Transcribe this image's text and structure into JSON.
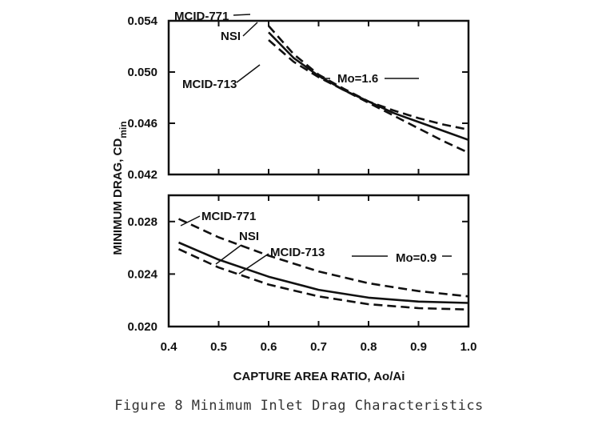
{
  "caption": "Figure 8  Minimum Inlet Drag Characteristics",
  "chart_data": [
    {
      "type": "line",
      "panel": "top",
      "xlim": [
        0.4,
        1.0
      ],
      "ylim": [
        0.042,
        0.054
      ],
      "yticks": [
        0.042,
        0.046,
        0.05,
        0.054
      ],
      "ytick_labels": [
        "0.042",
        "0.046",
        "0.050",
        "0.054"
      ],
      "annotation": "Mo=1.6",
      "series": [
        {
          "name": "MCID-771",
          "style": "dashed",
          "x": [
            0.6,
            0.65,
            0.7,
            0.75,
            0.8,
            0.85,
            0.9,
            0.95,
            1.0
          ],
          "y": [
            0.0536,
            0.0514,
            0.0498,
            0.0487,
            0.0477,
            0.047,
            0.0464,
            0.0459,
            0.0455
          ]
        },
        {
          "name": "NSI",
          "style": "solid",
          "x": [
            0.6,
            0.65,
            0.7,
            0.75,
            0.8,
            0.85,
            0.9,
            0.95,
            1.0
          ],
          "y": [
            0.0531,
            0.0511,
            0.0497,
            0.0486,
            0.0477,
            0.0468,
            0.0461,
            0.0454,
            0.0447
          ]
        },
        {
          "name": "MCID-713",
          "style": "dashed",
          "x": [
            0.6,
            0.65,
            0.7,
            0.75,
            0.8,
            0.85,
            0.9,
            0.95,
            1.0
          ],
          "y": [
            0.0525,
            0.0508,
            0.0496,
            0.0486,
            0.0476,
            0.0466,
            0.0456,
            0.0446,
            0.0437
          ]
        }
      ]
    },
    {
      "type": "line",
      "panel": "bottom",
      "xlim": [
        0.4,
        1.0
      ],
      "ylim": [
        0.02,
        0.03
      ],
      "yticks": [
        0.02,
        0.024,
        0.028
      ],
      "ytick_labels": [
        "0.020",
        "0.024",
        "0.028"
      ],
      "xticks": [
        0.4,
        0.5,
        0.6,
        0.7,
        0.8,
        0.9,
        1.0
      ],
      "xtick_labels": [
        "0.4",
        "0.5",
        "0.6",
        "0.7",
        "0.8",
        "0.9",
        "1.0"
      ],
      "annotation": "Mo=0.9",
      "series": [
        {
          "name": "MCID-771",
          "style": "dashed",
          "x": [
            0.42,
            0.5,
            0.6,
            0.7,
            0.8,
            0.9,
            1.0
          ],
          "y": [
            0.0282,
            0.0268,
            0.0254,
            0.0242,
            0.0233,
            0.0227,
            0.0223
          ]
        },
        {
          "name": "NSI",
          "style": "solid",
          "x": [
            0.42,
            0.5,
            0.6,
            0.7,
            0.8,
            0.9,
            1.0
          ],
          "y": [
            0.0264,
            0.0251,
            0.0238,
            0.0228,
            0.0222,
            0.0219,
            0.0218
          ]
        },
        {
          "name": "MCID-713",
          "style": "dashed",
          "x": [
            0.42,
            0.5,
            0.6,
            0.7,
            0.8,
            0.9,
            1.0
          ],
          "y": [
            0.0259,
            0.0245,
            0.0232,
            0.0223,
            0.0217,
            0.0214,
            0.0213
          ]
        }
      ]
    }
  ],
  "xlabel": "CAPTURE AREA RATIO, Ao/Ai",
  "ylabel_main": "MINIMUM DRAG, CD",
  "ylabel_sub": "min"
}
